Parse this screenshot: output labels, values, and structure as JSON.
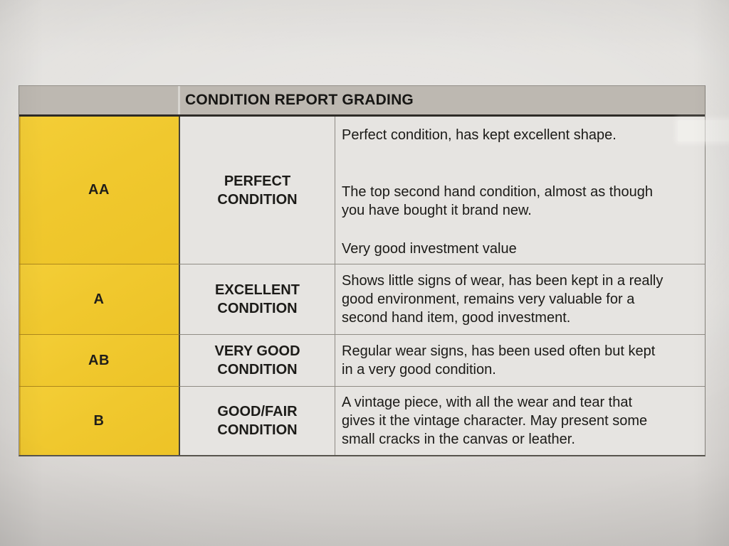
{
  "table": {
    "title": "CONDITION REPORT GRADING",
    "rows": [
      {
        "code": "AA",
        "label": "PERFECT CONDITION",
        "descriptions": [
          "Perfect condition, has kept excellent shape.",
          "The top second hand condition, almost as though you have bought it brand new.",
          "Very good investment value"
        ]
      },
      {
        "code": "A",
        "label": "EXCELLENT CONDITION",
        "descriptions": [
          "Shows little signs of wear, has been kept in a really good environment, remains very valuable for a second hand item, good investment."
        ]
      },
      {
        "code": "AB",
        "label": "VERY GOOD CONDITION",
        "descriptions": [
          "Regular wear signs, has been used often but kept in a very good condition."
        ]
      },
      {
        "code": "B",
        "label": "GOOD/FAIR CONDITION",
        "descriptions": [
          "A vintage piece, with all the wear and tear that gives it the vintage character. May present some small cracks in the canvas or leather."
        ]
      }
    ],
    "colors": {
      "grade_column": "#F0C82E",
      "header_bar": "#BDB8B1",
      "cell_background": "#E6E4E1",
      "text": "#1B1A17"
    }
  }
}
